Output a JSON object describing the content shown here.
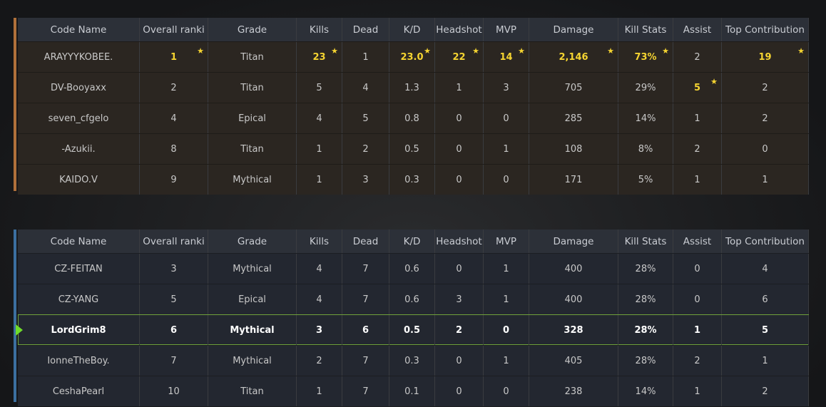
{
  "columns": [
    "Code Name",
    "Overall ranki",
    "Grade",
    "Kills",
    "Dead",
    "K/D",
    "Headshot",
    "MVP",
    "Damage",
    "Kill Stats",
    "Assist",
    "Top Contribution"
  ],
  "colors": {
    "team1_accent": "#b0703a",
    "team2_accent": "#3b6fa0",
    "highlight": "#f5d431",
    "self_border": "#6fa23a"
  },
  "team1": [
    {
      "cells": [
        "ARAYYYKOBEE.",
        "1",
        "Titan",
        "23",
        "1",
        "23.0",
        "22",
        "14",
        "2,146",
        "73%",
        "2",
        "19"
      ],
      "stars": [
        1,
        3,
        5,
        6,
        7,
        8,
        9,
        11
      ]
    },
    {
      "cells": [
        "DV-Booyaxx",
        "2",
        "Titan",
        "5",
        "4",
        "1.3",
        "1",
        "3",
        "705",
        "29%",
        "5",
        "2"
      ],
      "stars": [
        10
      ]
    },
    {
      "cells": [
        "seven_cfgelo",
        "4",
        "Epical",
        "4",
        "5",
        "0.8",
        "0",
        "0",
        "285",
        "14%",
        "1",
        "2"
      ],
      "stars": []
    },
    {
      "cells": [
        "-Azukii.",
        "8",
        "Titan",
        "1",
        "2",
        "0.5",
        "0",
        "1",
        "108",
        "8%",
        "2",
        "0"
      ],
      "stars": []
    },
    {
      "cells": [
        "KAIDO.V",
        "9",
        "Mythical",
        "1",
        "3",
        "0.3",
        "0",
        "0",
        "171",
        "5%",
        "1",
        "1"
      ],
      "stars": []
    }
  ],
  "team2": [
    {
      "cells": [
        "CZ-FEITAN",
        "3",
        "Mythical",
        "4",
        "7",
        "0.6",
        "0",
        "1",
        "400",
        "28%",
        "0",
        "4"
      ],
      "stars": []
    },
    {
      "cells": [
        "CZ-YANG",
        "5",
        "Epical",
        "4",
        "7",
        "0.6",
        "3",
        "1",
        "400",
        "28%",
        "0",
        "6"
      ],
      "stars": []
    },
    {
      "cells": [
        "LordGrim8",
        "6",
        "Mythical",
        "3",
        "6",
        "0.5",
        "2",
        "0",
        "328",
        "28%",
        "1",
        "5"
      ],
      "stars": [],
      "self": true
    },
    {
      "cells": [
        "IonneTheBoy.",
        "7",
        "Mythical",
        "2",
        "7",
        "0.3",
        "0",
        "1",
        "405",
        "28%",
        "2",
        "1"
      ],
      "stars": []
    },
    {
      "cells": [
        "CeshaPearl",
        "10",
        "Titan",
        "1",
        "7",
        "0.1",
        "0",
        "0",
        "238",
        "14%",
        "1",
        "2"
      ],
      "stars": []
    }
  ]
}
